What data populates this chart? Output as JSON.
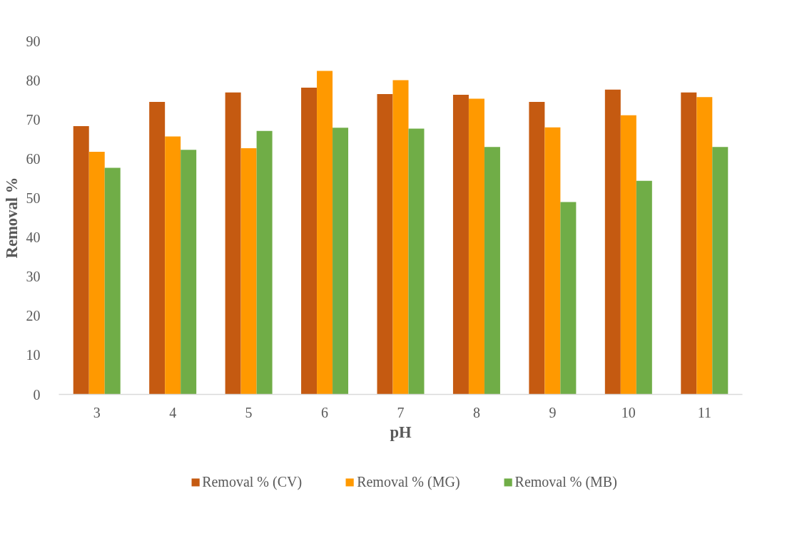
{
  "chart_data": {
    "type": "bar",
    "xlabel": "pH",
    "ylabel": "Removal %",
    "categories": [
      "3",
      "4",
      "5",
      "6",
      "7",
      "8",
      "9",
      "10",
      "11"
    ],
    "series": [
      {
        "name": "Removal % (CV)",
        "color": "#c55a11",
        "values": [
          68.3,
          74.5,
          76.9,
          78.1,
          76.5,
          76.3,
          74.5,
          77.6,
          76.9
        ]
      },
      {
        "name": "Removal % (MG)",
        "color": "#ff9900",
        "values": [
          61.8,
          65.7,
          62.7,
          82.4,
          80.0,
          75.3,
          68.0,
          71.1,
          75.7
        ]
      },
      {
        "name": "Removal % (MB)",
        "color": "#70ad47",
        "values": [
          57.7,
          62.3,
          67.1,
          67.9,
          67.7,
          63.0,
          49.0,
          54.4,
          63.0
        ]
      }
    ],
    "ylim": [
      0,
      90
    ],
    "yticks": [
      0,
      10,
      20,
      30,
      40,
      50,
      60,
      70,
      80,
      90
    ],
    "grid": false,
    "legend": "bottom"
  }
}
